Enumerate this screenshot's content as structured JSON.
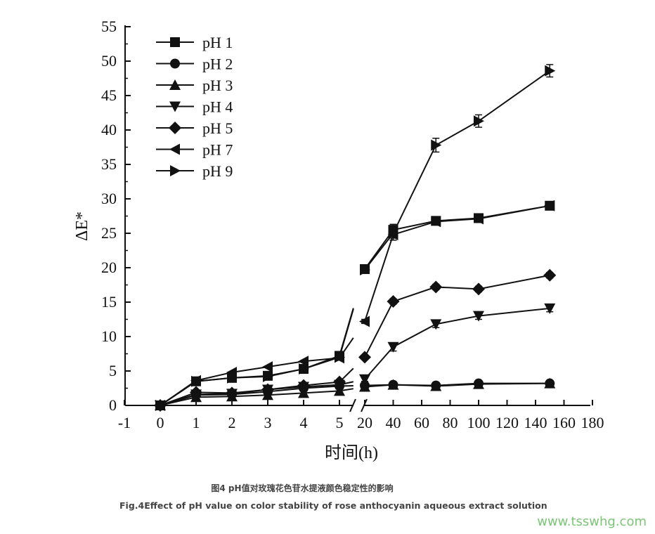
{
  "caption_cn": "图4 pH值对玫瑰花色苷水提液颜色稳定性的影响",
  "caption_en": "Fig.4Effect of pH value on color stability of rose anthocyanin aqueous extract solution",
  "watermark": "www.tsswhg.com",
  "chart_data": {
    "type": "line",
    "xlabel": "时间(h)",
    "ylabel": "ΔE*",
    "ylim": [
      0,
      55
    ],
    "yticks": [
      0,
      5,
      10,
      15,
      20,
      25,
      30,
      35,
      40,
      45,
      50,
      55
    ],
    "axis_break": true,
    "xlim_left": [
      -1,
      5
    ],
    "xticks_left": [
      -1,
      0,
      1,
      2,
      3,
      4,
      5
    ],
    "xlim_right": [
      20,
      180
    ],
    "xticks_right": [
      20,
      40,
      60,
      80,
      100,
      120,
      140,
      160,
      180
    ],
    "x_left": [
      0,
      1,
      2,
      3,
      4,
      5
    ],
    "x_right": [
      20,
      40,
      70,
      100,
      150
    ],
    "legend_position": "top-left",
    "series": [
      {
        "name": "pH 1",
        "marker": "square",
        "left": [
          0,
          3.5,
          4.0,
          4.3,
          5.3,
          7.2
        ],
        "right": [
          19.8,
          25.5,
          26.8,
          27.2,
          29.0
        ],
        "err_right": [
          0.4,
          0.8,
          0.4,
          0.4,
          0.5
        ]
      },
      {
        "name": "pH 2",
        "marker": "circle",
        "left": [
          0,
          1.5,
          1.6,
          2.0,
          2.5,
          2.8
        ],
        "right": [
          2.9,
          3.0,
          2.9,
          3.2,
          3.2
        ],
        "err_right": [
          0.2,
          0.2,
          0.2,
          0.2,
          0.2
        ]
      },
      {
        "name": "pH 3",
        "marker": "triangle-up",
        "left": [
          0,
          1.2,
          1.3,
          1.5,
          1.8,
          2.1
        ],
        "right": [
          2.7,
          3.0,
          2.8,
          3.1,
          3.2
        ],
        "err_right": [
          0.2,
          0.2,
          0.2,
          0.2,
          0.2
        ]
      },
      {
        "name": "pH 4",
        "marker": "triangle-down",
        "left": [
          0,
          1.6,
          1.7,
          2.3,
          2.7,
          3.0
        ],
        "right": [
          3.8,
          8.5,
          11.8,
          13.0,
          14.1
        ],
        "err_right": [
          0.3,
          0.6,
          0.5,
          0.5,
          0.5
        ]
      },
      {
        "name": "pH 5",
        "marker": "diamond",
        "left": [
          0,
          1.9,
          1.8,
          2.3,
          2.9,
          3.4
        ],
        "right": [
          7.0,
          15.1,
          17.2,
          16.9,
          18.9
        ],
        "err_right": [
          0.3,
          0.4,
          0.4,
          0.4,
          0.4
        ]
      },
      {
        "name": "pH 7",
        "marker": "triangle-left",
        "left": [
          0,
          3.6,
          4.8,
          5.6,
          6.4,
          6.9
        ],
        "right": [
          12.2,
          24.8,
          26.7,
          27.1,
          29.0
        ],
        "err_right": [
          0.3,
          0.5,
          0.4,
          0.4,
          0.4
        ]
      },
      {
        "name": "pH 9",
        "marker": "triangle-right",
        "left": [
          0,
          3.5,
          4.0,
          4.2,
          5.3,
          7.0
        ],
        "right": [
          19.7,
          25.0,
          37.8,
          41.3,
          48.6
        ],
        "err_right": [
          0.4,
          1.0,
          1.0,
          0.9,
          0.9
        ]
      }
    ]
  }
}
